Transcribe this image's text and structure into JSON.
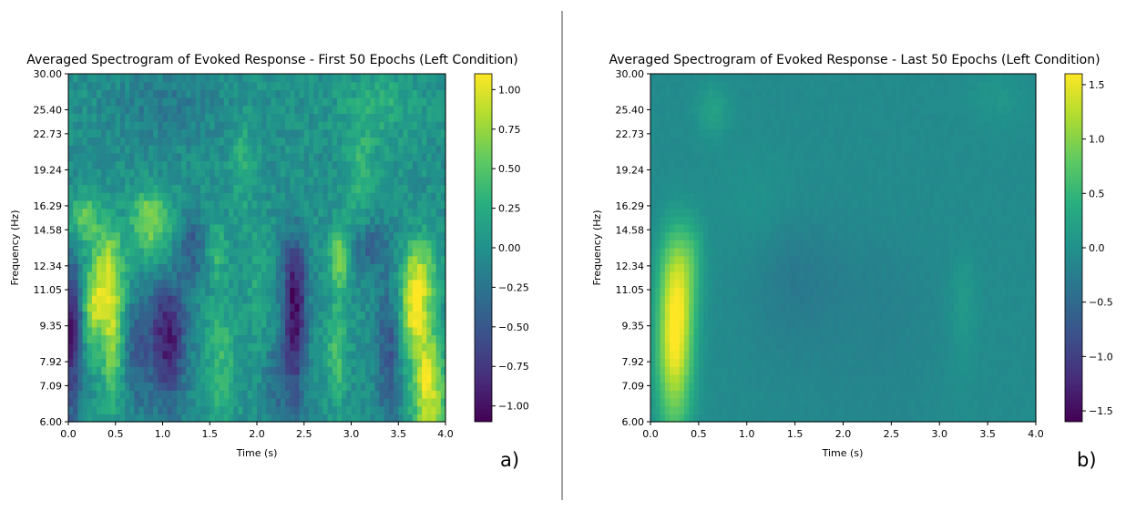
{
  "chart_data": [
    {
      "type": "heatmap",
      "panel_label": "a)",
      "title": "Averaged Spectrogram of Evoked Response - First 50 Epochs (Left Condition)",
      "xlabel": "Time (s)",
      "ylabel": "Frequency (Hz)",
      "xlim": [
        0,
        4
      ],
      "x_ticks": [
        "0.0",
        "0.5",
        "1.0",
        "1.5",
        "2.0",
        "2.5",
        "3.0",
        "3.5",
        "4.0"
      ],
      "y_scale": "log",
      "y_ticks": [
        "6.00",
        "7.09",
        "7.92",
        "9.35",
        "11.05",
        "12.34",
        "14.58",
        "16.29",
        "19.24",
        "22.73",
        "25.40",
        "30.00"
      ],
      "colormap": "viridis",
      "clim": [
        -1.1,
        1.1
      ],
      "colorbar_ticks": [
        "1.00",
        "0.75",
        "0.50",
        "0.25",
        "0.00",
        "−0.25",
        "−0.50",
        "−0.75",
        "−1.00"
      ],
      "notes": "Noisy map: yellow ridges near t=0.2-0.6 s (9-14 Hz), t=0.8-1.2 s (14-17 Hz), t=2.8-2.9 s (8-14 Hz) and t=3.5-4.0 s (6-13 Hz); dark troughs near t=0-0.1 s, 0.9-1.1 s and 2.3-2.5 s (9-12 Hz)."
    },
    {
      "type": "heatmap",
      "panel_label": "b)",
      "title": "Averaged Spectrogram of Evoked Response - Last 50 Epochs (Left Condition)",
      "xlabel": "Time (s)",
      "ylabel": "Frequency (Hz)",
      "xlim": [
        0,
        4
      ],
      "x_ticks": [
        "0.0",
        "0.5",
        "1.0",
        "1.5",
        "2.0",
        "2.5",
        "3.0",
        "3.5",
        "4.0"
      ],
      "y_scale": "log",
      "y_ticks": [
        "6.00",
        "7.09",
        "7.92",
        "9.35",
        "11.05",
        "12.34",
        "14.58",
        "16.29",
        "19.24",
        "22.73",
        "25.40",
        "30.00"
      ],
      "colormap": "viridis",
      "clim": [
        -1.6,
        1.6
      ],
      "colorbar_ticks": [
        "1.5",
        "1.0",
        "0.5",
        "0.0",
        "−0.5",
        "−1.0",
        "−1.5"
      ],
      "notes": "Smooth map near 0 with a strong yellow blob at t=0.1-0.5 s, 6-15 Hz (peak ~1.5 around 10-11 Hz)."
    }
  ]
}
